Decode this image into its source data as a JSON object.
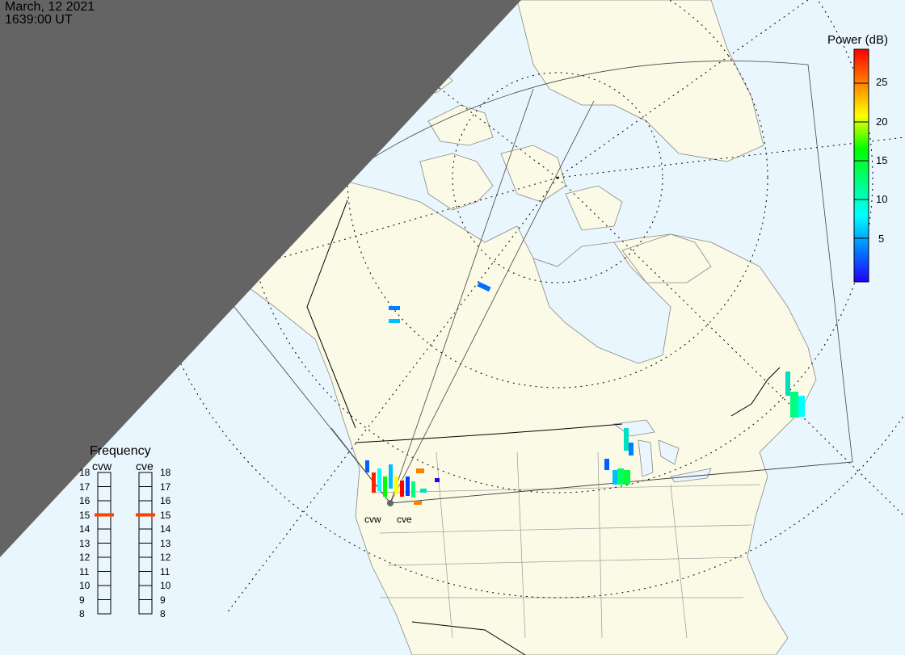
{
  "header": {
    "date": "March, 12 2021",
    "time": "1639:00 UT"
  },
  "colors": {
    "ocean": "#eaf6fd",
    "land": "#fafae6",
    "night": "#646464",
    "freq_marker": "#ff4000"
  },
  "colorbar": {
    "title": "Power (dB)",
    "ticks": [
      "25",
      "20",
      "15",
      "10",
      "5"
    ],
    "range": [
      0,
      30
    ],
    "stops": [
      "#2000ff",
      "#0080ff",
      "#00ffff",
      "#00ff80",
      "#00ff00",
      "#ffff00",
      "#ff8000",
      "#ff0000"
    ]
  },
  "frequency": {
    "title": "Frequency",
    "ticks": [
      "18",
      "17",
      "16",
      "15",
      "14",
      "13",
      "12",
      "11",
      "10",
      "9",
      "8"
    ],
    "radars": [
      {
        "name": "cvw",
        "value": 15
      },
      {
        "name": "cve",
        "value": 15
      }
    ]
  },
  "sites": [
    {
      "name": "cvw"
    },
    {
      "name": "cve"
    }
  ]
}
